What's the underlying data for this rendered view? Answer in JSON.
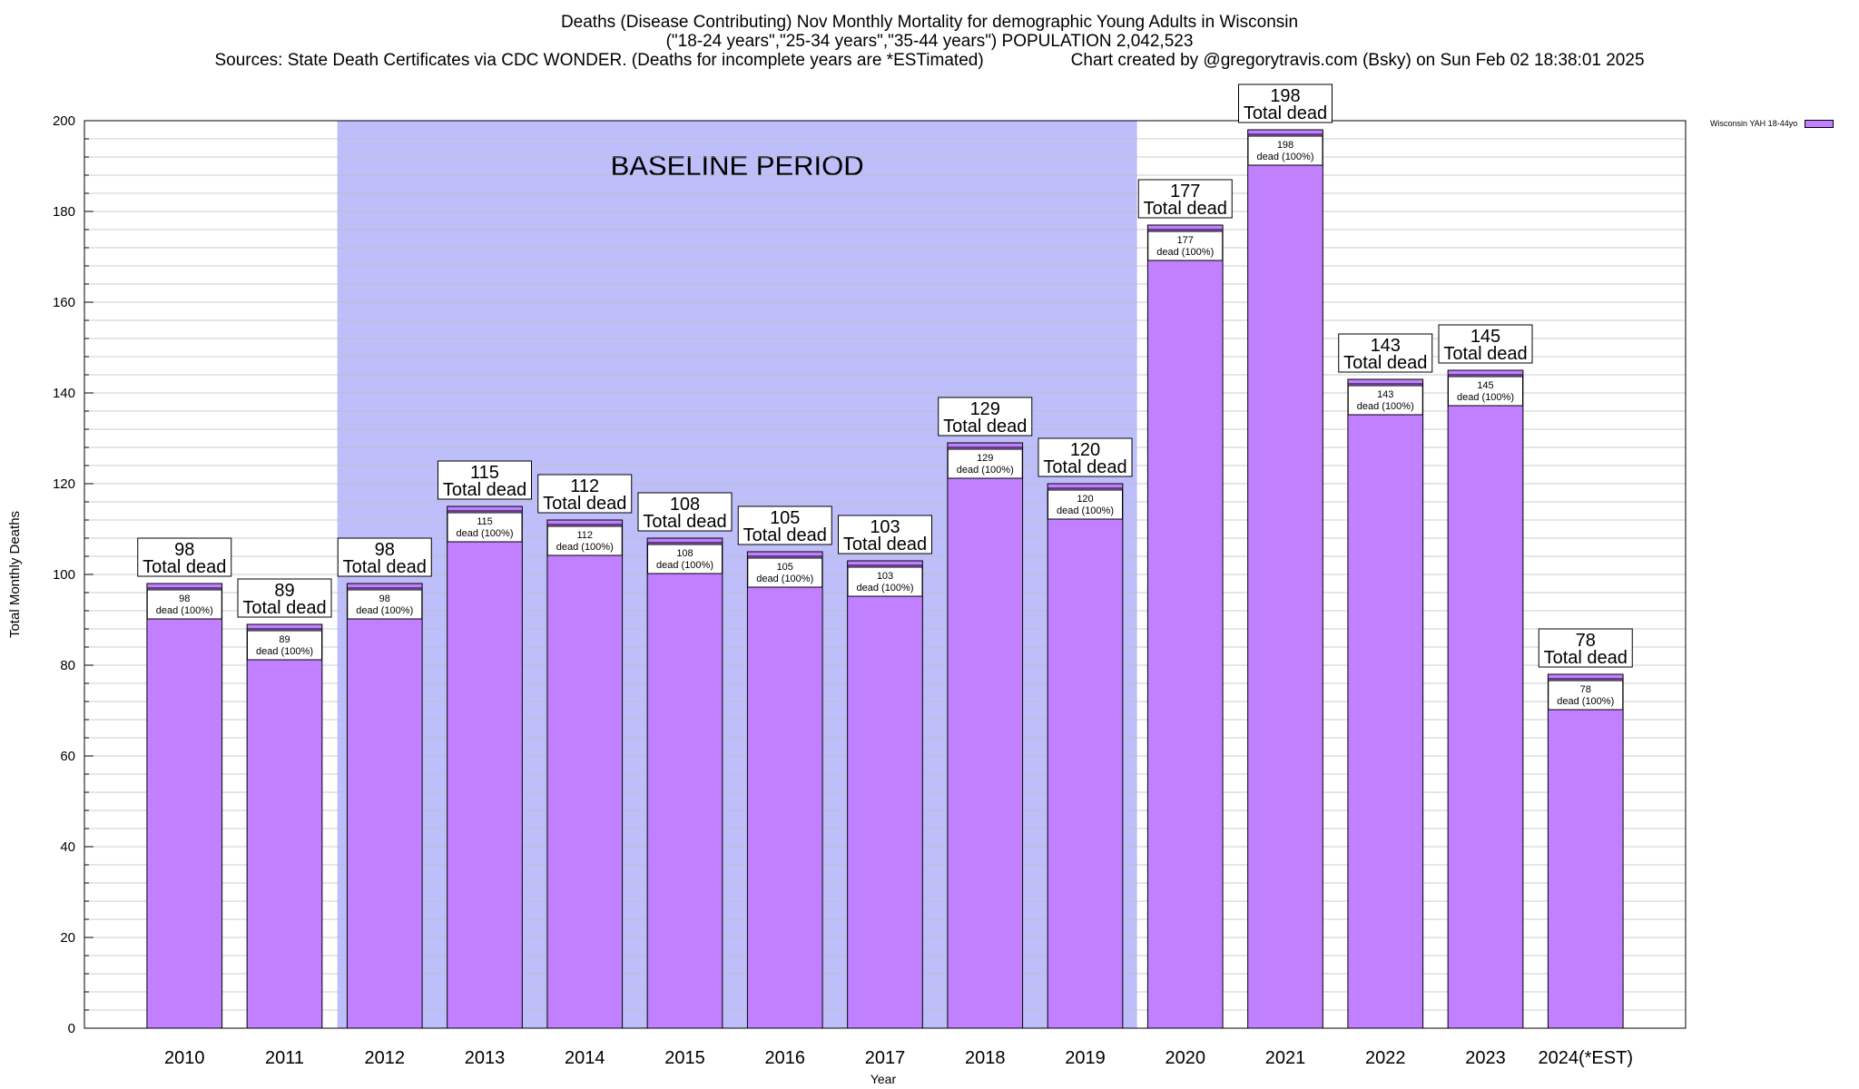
{
  "title": {
    "line1": "Deaths (Disease Contributing) Nov Monthly Mortality for demographic Young Adults in Wisconsin",
    "line2": "(\"18-24 years\",\"25-34 years\",\"35-44 years\") POPULATION 2,042,523",
    "line3_sources": "Sources: State Death Certificates via CDC WONDER. (Deaths for incomplete years are *ESTimated)",
    "line3_credit": "Chart created by @gregorytravis.com (Bsky) on Sun Feb 02 18:38:01 2025"
  },
  "colors": {
    "bar": "#c080ff",
    "baseline_band": "#bebefa",
    "grid": "#bdbdbd",
    "axis": "#000000"
  },
  "chart_data": {
    "type": "bar",
    "categories": [
      "2010",
      "2011",
      "2012",
      "2013",
      "2014",
      "2015",
      "2016",
      "2017",
      "2018",
      "2019",
      "2020",
      "2021",
      "2022",
      "2023",
      "2024(*EST)"
    ],
    "series": [
      {
        "name": "Wisconsin YAH 18-44yo",
        "values": [
          98,
          89,
          98,
          115,
          112,
          108,
          105,
          103,
          129,
          120,
          177,
          198,
          143,
          145,
          78
        ]
      }
    ],
    "top_label_text": "Total dead",
    "inner_label_text": "dead (100%)",
    "xlabel": "Year",
    "ylabel": "Total Monthly Deaths",
    "ylim": [
      0,
      200
    ],
    "yticks": [
      0,
      20,
      40,
      60,
      80,
      100,
      120,
      140,
      160,
      180,
      200
    ],
    "minor_tick_step": 4,
    "grid": true,
    "legend_position": "top-right",
    "annotations": [
      {
        "text": "BASELINE PERIOD",
        "type": "shaded-band",
        "from_category": "2012",
        "to_category": "2019"
      }
    ]
  }
}
